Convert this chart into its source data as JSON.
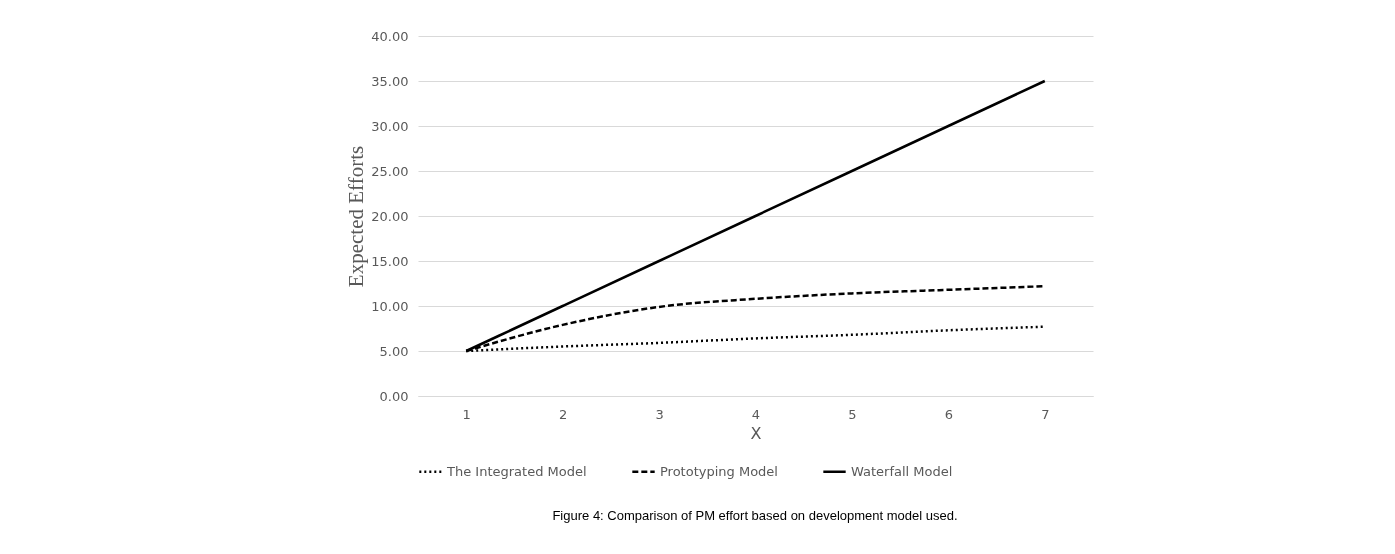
{
  "chart_data": {
    "type": "line",
    "xlabel": "X",
    "ylabel": "Expected Efforts",
    "categories": [
      "1",
      "2",
      "3",
      "4",
      "5",
      "6",
      "7"
    ],
    "series": [
      {
        "name": "The Integrated Model",
        "color": "#000000",
        "line_style": "dotted",
        "values": [
          5.0,
          5.5,
          5.9,
          6.4,
          6.8,
          7.3,
          7.7
        ]
      },
      {
        "name": "Prototyping Model",
        "color": "#000000",
        "line_style": "dashed",
        "values": [
          5.0,
          7.9,
          9.9,
          10.8,
          11.4,
          11.8,
          12.2
        ]
      },
      {
        "name": "Waterfall Model",
        "color": "#000000",
        "line_style": "solid",
        "values": [
          5,
          10,
          15,
          20,
          25,
          30,
          35
        ]
      }
    ],
    "ylim": [
      0,
      40
    ],
    "yticks": [
      {
        "value": 0,
        "label": "0.00"
      },
      {
        "value": 5,
        "label": "5.00"
      },
      {
        "value": 10,
        "label": "10.00"
      },
      {
        "value": 15,
        "label": "15.00"
      },
      {
        "value": 20,
        "label": "20.00"
      },
      {
        "value": 25,
        "label": "25.00"
      },
      {
        "value": 30,
        "label": "30.00"
      },
      {
        "value": 35,
        "label": "35.00"
      },
      {
        "value": 40,
        "label": "40.00"
      }
    ],
    "grid": "y",
    "legend": "bottom",
    "marker": "none",
    "annotations": [
      "Figure 4: Comparison of PM effort based on development model used."
    ]
  }
}
